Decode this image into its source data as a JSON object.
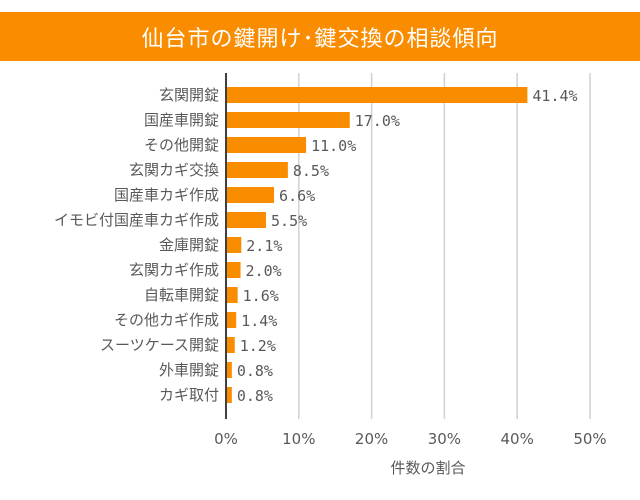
{
  "title": "仙台市の鍵開け･鍵交換の相談傾向",
  "colors": {
    "banner": "#FA8C00",
    "bar": "#FA8C00",
    "grid": "#D0D0D0",
    "axis": "#404040",
    "text": "#595959"
  },
  "chart_data": {
    "type": "bar",
    "orientation": "horizontal",
    "title": "仙台市の鍵開け･鍵交換の相談傾向",
    "xlabel": "件数の割合",
    "ylabel": "",
    "xlim": [
      0,
      50
    ],
    "grid": true,
    "categories": [
      "玄関開錠",
      "国産車開錠",
      "その他開錠",
      "玄関カギ交換",
      "国産車カギ作成",
      "イモビ付国産車カギ作成",
      "金庫開錠",
      "玄関カギ作成",
      "自転車開錠",
      "その他カギ作成",
      "スーツケース開錠",
      "外車開錠",
      "カギ取付"
    ],
    "values": [
      41.4,
      17.0,
      11.0,
      8.5,
      6.6,
      5.5,
      2.1,
      2.0,
      1.6,
      1.4,
      1.2,
      0.8,
      0.8
    ],
    "data_labels": [
      "41.4%",
      "17.0%",
      "11.0%",
      "8.5%",
      "6.6%",
      "5.5%",
      "2.1%",
      "2.0%",
      "1.6%",
      "1.4%",
      "1.2%",
      "0.8%",
      "0.8%"
    ],
    "tick_labels": [
      "0%",
      "10%",
      "20%",
      "30%",
      "40%",
      "50%"
    ]
  }
}
